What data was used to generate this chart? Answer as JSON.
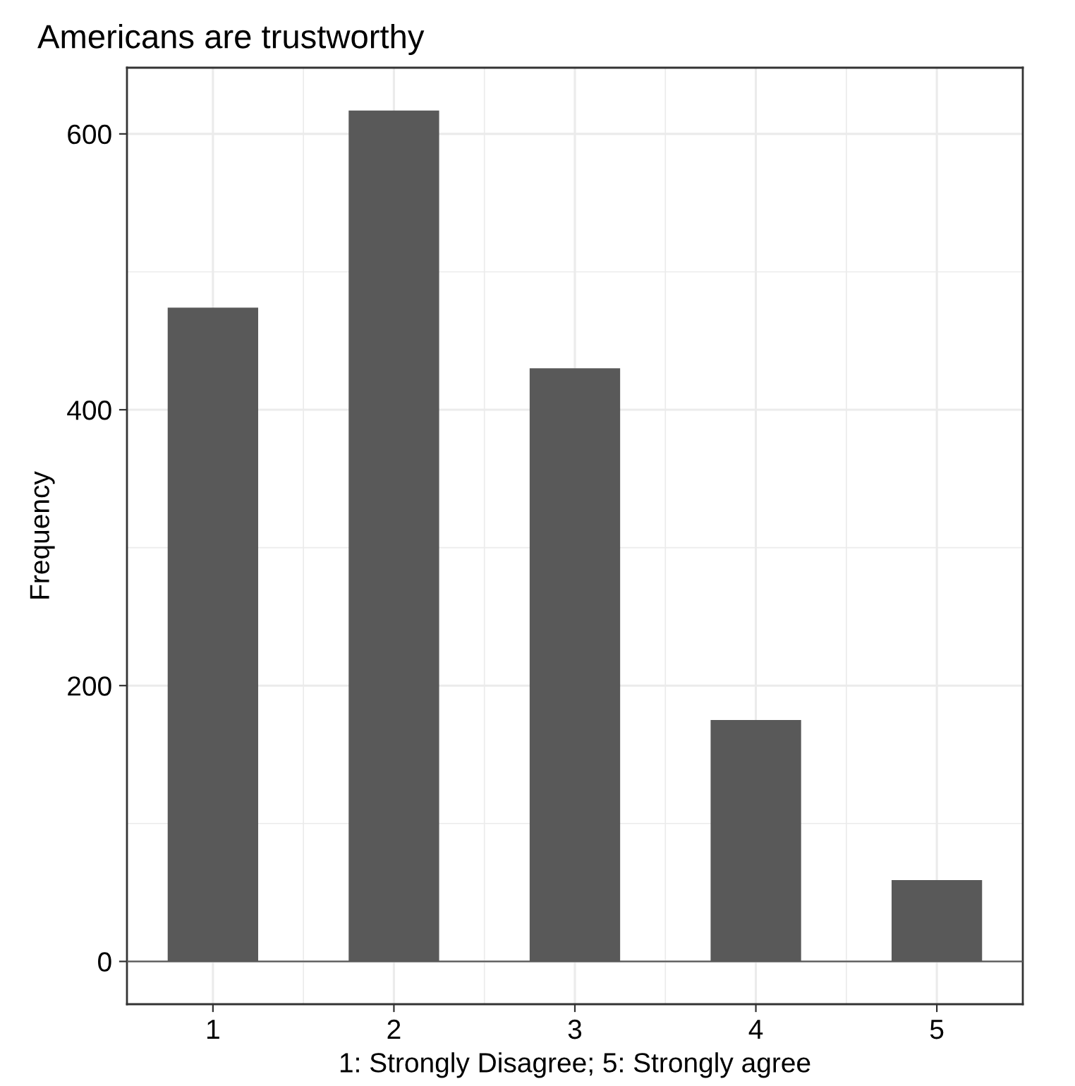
{
  "chart_data": {
    "type": "bar",
    "title": "Americans are trustworthy",
    "xlabel": "1: Strongly Disagree; 5: Strongly agree",
    "ylabel": "Frequency",
    "x": [
      1,
      2,
      3,
      4,
      5
    ],
    "values": [
      474,
      617,
      430,
      175,
      59
    ],
    "color": "#595959",
    "xlim": [
      0.525,
      5.475
    ],
    "xticks": [
      1,
      2,
      3,
      4,
      5
    ],
    "ylim": [
      -31,
      648
    ],
    "yticks": [
      0,
      200,
      400,
      600
    ],
    "ref_lines": [
      {
        "axis": "y",
        "value": 0,
        "color": "#595959"
      }
    ],
    "grid": true,
    "legend": false
  }
}
